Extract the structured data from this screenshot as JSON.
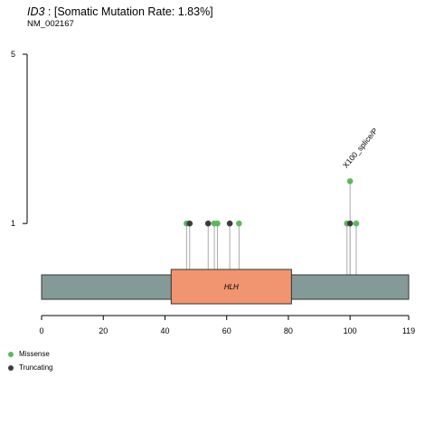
{
  "header": {
    "gene": "ID3",
    "rate_text": " : [Somatic Mutation Rate: 1.83%]",
    "transcript": "NM_002167"
  },
  "colors": {
    "missense": "#5cb85c",
    "truncating": "#3d3d3d",
    "protein_bar": "#849a98",
    "domain_fill": "#f0956f",
    "stem": "#aaaaaa",
    "axis": "#000000"
  },
  "legend": [
    {
      "label": "Missense",
      "color_key": "missense"
    },
    {
      "label": "Truncating",
      "color_key": "truncating"
    }
  ],
  "chart_data": {
    "type": "lollipop",
    "protein_length": 119,
    "x_ticks": [
      0,
      20,
      40,
      60,
      80,
      100,
      119
    ],
    "y_ticks": [
      1,
      5
    ],
    "ylim": [
      0,
      5
    ],
    "domains": [
      {
        "name": "HLH",
        "start": 42,
        "end": 81
      }
    ],
    "mutations": [
      {
        "position": 47,
        "count": 1,
        "type": "missense"
      },
      {
        "position": 48,
        "count": 1,
        "type": "truncating"
      },
      {
        "position": 54,
        "count": 1,
        "type": "truncating"
      },
      {
        "position": 56,
        "count": 1,
        "type": "missense"
      },
      {
        "position": 57,
        "count": 1,
        "type": "missense"
      },
      {
        "position": 61,
        "count": 1,
        "type": "truncating"
      },
      {
        "position": 64,
        "count": 1,
        "type": "missense"
      },
      {
        "position": 99,
        "count": 1,
        "type": "missense"
      },
      {
        "position": 100,
        "count": 1,
        "type": "truncating"
      },
      {
        "position": 102,
        "count": 1,
        "type": "missense"
      },
      {
        "position": 100,
        "count": 2,
        "type": "missense",
        "label": "X100_splice/P"
      }
    ]
  }
}
